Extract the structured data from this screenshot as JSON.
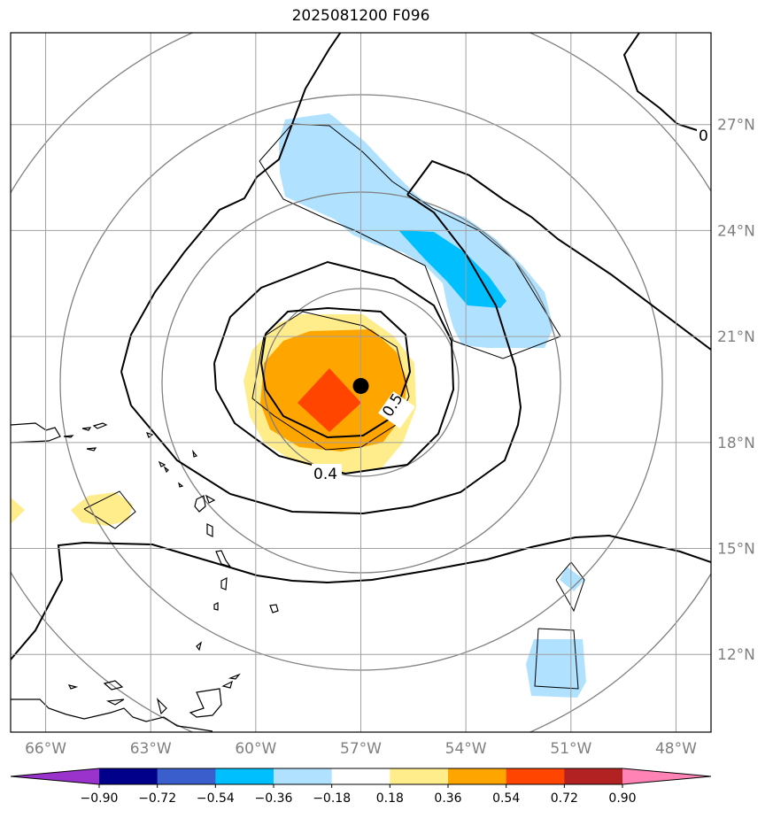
{
  "title": "2025081200 F096",
  "map": {
    "lon_range": [
      -67,
      -47
    ],
    "lat_range": [
      9.8,
      29.6
    ],
    "lon_ticks": [
      {
        "lon": -66,
        "label": "66°W"
      },
      {
        "lon": -63,
        "label": "63°W"
      },
      {
        "lon": -60,
        "label": "60°W"
      },
      {
        "lon": -57,
        "label": "57°W"
      },
      {
        "lon": -54,
        "label": "54°W"
      },
      {
        "lon": -51,
        "label": "51°W"
      },
      {
        "lon": -48,
        "label": "48°W"
      }
    ],
    "lat_ticks": [
      {
        "lat": 27,
        "label": "27°N"
      },
      {
        "lat": 24,
        "label": "24°N"
      },
      {
        "lat": 21,
        "label": "21°N"
      },
      {
        "lat": 18,
        "label": "18°N"
      },
      {
        "lat": 15,
        "label": "15°N"
      },
      {
        "lat": 12,
        "label": "12°N"
      }
    ],
    "center_marker": {
      "lon": -57.0,
      "lat": 19.6
    },
    "contour_labels": [
      {
        "text": "0.5",
        "lon": -56.0,
        "lat": 18.9
      },
      {
        "text": "0.4",
        "lon": -57.7,
        "lat": 17.1
      },
      {
        "text": "0",
        "lon": -47.3,
        "lat": 26.7
      }
    ]
  },
  "colorbar": {
    "levels": [
      "−0.90",
      "−0.72",
      "−0.54",
      "−0.36",
      "−0.18",
      "0.18",
      "0.36",
      "0.54",
      "0.72",
      "0.90"
    ],
    "colors": [
      "#9933cc",
      "#00008b",
      "#3a5fcd",
      "#00bfff",
      "#b0e2ff",
      "#ffffff",
      "#ffec8b",
      "#ffa500",
      "#ff4500",
      "#b22222",
      "#ff83b5"
    ]
  }
}
